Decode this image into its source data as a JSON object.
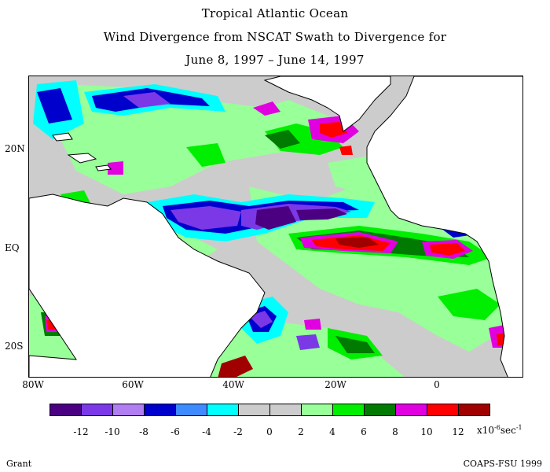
{
  "title": {
    "line1": "Tropical Atlantic Ocean",
    "line2": "Wind Divergence from NSCAT Swath to Divergence for",
    "line3": "June 8, 1997 – June 14, 1997"
  },
  "axes": {
    "lat_labels": [
      "20N",
      "EQ",
      "20S"
    ],
    "lon_labels": [
      "80W",
      "60W",
      "40W",
      "20W",
      "0"
    ],
    "lon_range": [
      -80,
      15
    ],
    "lat_range": [
      -25,
      32
    ]
  },
  "colorbar": {
    "colors": [
      "#4b0082",
      "#7b38e6",
      "#b07ef0",
      "#0000cd",
      "#3d8bff",
      "#00ffff",
      "#cccccc",
      "#cccccc",
      "#99ff99",
      "#00ee00",
      "#007a00",
      "#e000e0",
      "#ff0000",
      "#a00000"
    ],
    "tick_labels": [
      "-12",
      "-10",
      "-8",
      "-6",
      "-4",
      "-2",
      "0",
      "2",
      "4",
      "6",
      "8",
      "10",
      "12"
    ],
    "unit_base": "x10",
    "unit_exp": "-6",
    "unit_tail": "sec",
    "unit_tail_exp": "-1"
  },
  "footer": {
    "left": "Grant",
    "right": "COAPS-FSU 1999"
  }
}
